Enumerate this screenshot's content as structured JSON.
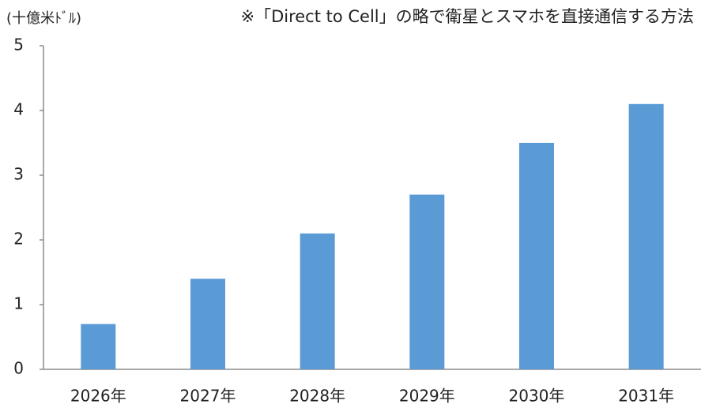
{
  "chart_data": {
    "type": "bar",
    "ylabel": "(十億米ﾄﾞﾙ)",
    "annotation": "※「Direct to Cell」の略で衛星とスマホを直接通信する方法",
    "categories": [
      "2026年",
      "2027年",
      "2028年",
      "2029年",
      "2030年",
      "2031年"
    ],
    "values": [
      0.7,
      1.4,
      2.1,
      2.7,
      3.5,
      4.1
    ],
    "color": "#5b9bd5",
    "ylim": [
      0,
      5
    ],
    "yticks": [
      0,
      1,
      2,
      3,
      4,
      5
    ],
    "grid": false
  }
}
